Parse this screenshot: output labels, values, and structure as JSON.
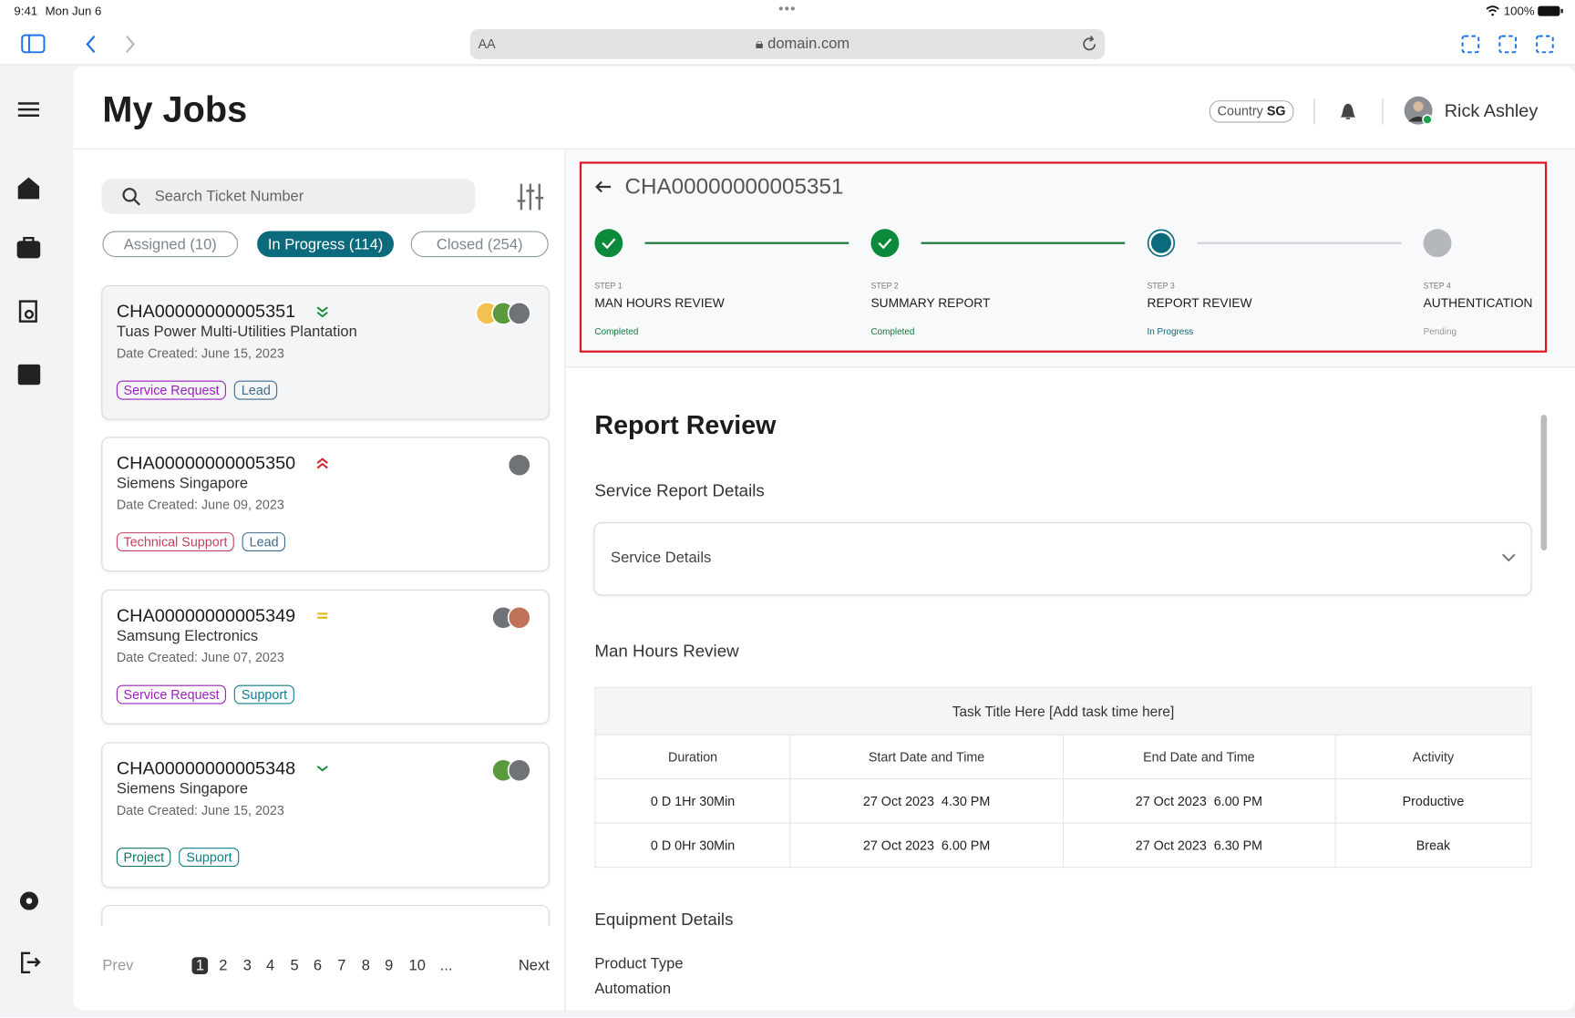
{
  "status": {
    "time": "9:41",
    "date": "Mon Jun 6",
    "battery": "100%"
  },
  "browser": {
    "text_size": "AA",
    "url": "domain.com"
  },
  "header": {
    "title": "My Jobs",
    "country_label": "Country",
    "country_value": "SG",
    "user": "Rick Ashley"
  },
  "search": {
    "placeholder": "Search Ticket Number"
  },
  "tabs": [
    "Assigned (10)",
    "In Progress (114)",
    "Closed (254)"
  ],
  "jobs": [
    {
      "id": "CHA00000000005351",
      "company": "Tuas Power Multi-Utilities Plantation",
      "date": "Date Created: June 15, 2023",
      "tags": [
        {
          "label": "Service Request",
          "color": "#9c1fbf"
        },
        {
          "label": "Lead",
          "color": "#3d6b8c"
        }
      ]
    },
    {
      "id": "CHA00000000005350",
      "company": "Siemens Singapore",
      "date": "Date Created: June 09, 2023",
      "tags": [
        {
          "label": "Technical Support",
          "color": "#c4405e"
        },
        {
          "label": "Lead",
          "color": "#3d6b8c"
        }
      ]
    },
    {
      "id": "CHA00000000005349",
      "company": "Samsung Electronics",
      "date": "Date Created: June 07, 2023",
      "tags": [
        {
          "label": "Service Request",
          "color": "#9c1fbf"
        },
        {
          "label": "Support",
          "color": "#0e7d8a"
        }
      ]
    },
    {
      "id": "CHA00000000005348",
      "company": "Siemens Singapore",
      "date": "Date Created: June 15, 2023",
      "tags": [
        {
          "label": "Project",
          "color": "#0b7566"
        },
        {
          "label": "Support",
          "color": "#0e7d8a"
        }
      ]
    }
  ],
  "pagination": {
    "prev": "Prev",
    "pages": [
      "1",
      "2",
      "3",
      "4",
      "5",
      "6",
      "7",
      "8",
      "9",
      "10",
      "..."
    ],
    "next": "Next"
  },
  "detail": {
    "ticket": "CHA00000000005351",
    "steps": [
      {
        "step": "STEP 1",
        "title": "MAN HOURS REVIEW",
        "status": "Completed"
      },
      {
        "step": "STEP 2",
        "title": "SUMMARY REPORT",
        "status": "Completed"
      },
      {
        "step": "STEP 3",
        "title": "REPORT REVIEW",
        "status": "In Progress"
      },
      {
        "step": "STEP 4",
        "title": "AUTHENTICATION",
        "status": "Pending"
      }
    ]
  },
  "report": {
    "title": "Report Review",
    "service_section": "Service Report Details",
    "accordion": "Service Details",
    "man_hours_section": "Man Hours Review",
    "table": {
      "title": "Task Title Here [Add task time here]",
      "headers": [
        "Duration",
        "Start Date and Time",
        "End Date and Time",
        "Activity"
      ],
      "rows": [
        [
          "0 D 1Hr 30Min",
          "27 Oct 2023  4.30 PM",
          "27 Oct 2023  6.00 PM",
          "Productive"
        ],
        [
          "0 D 0Hr 30Min",
          "27 Oct 2023  6.00 PM",
          "27 Oct 2023  6.30 PM",
          "Break"
        ]
      ]
    },
    "equipment_section": "Equipment Details",
    "product_type_label": "Product Type",
    "product_type": "Automation"
  }
}
